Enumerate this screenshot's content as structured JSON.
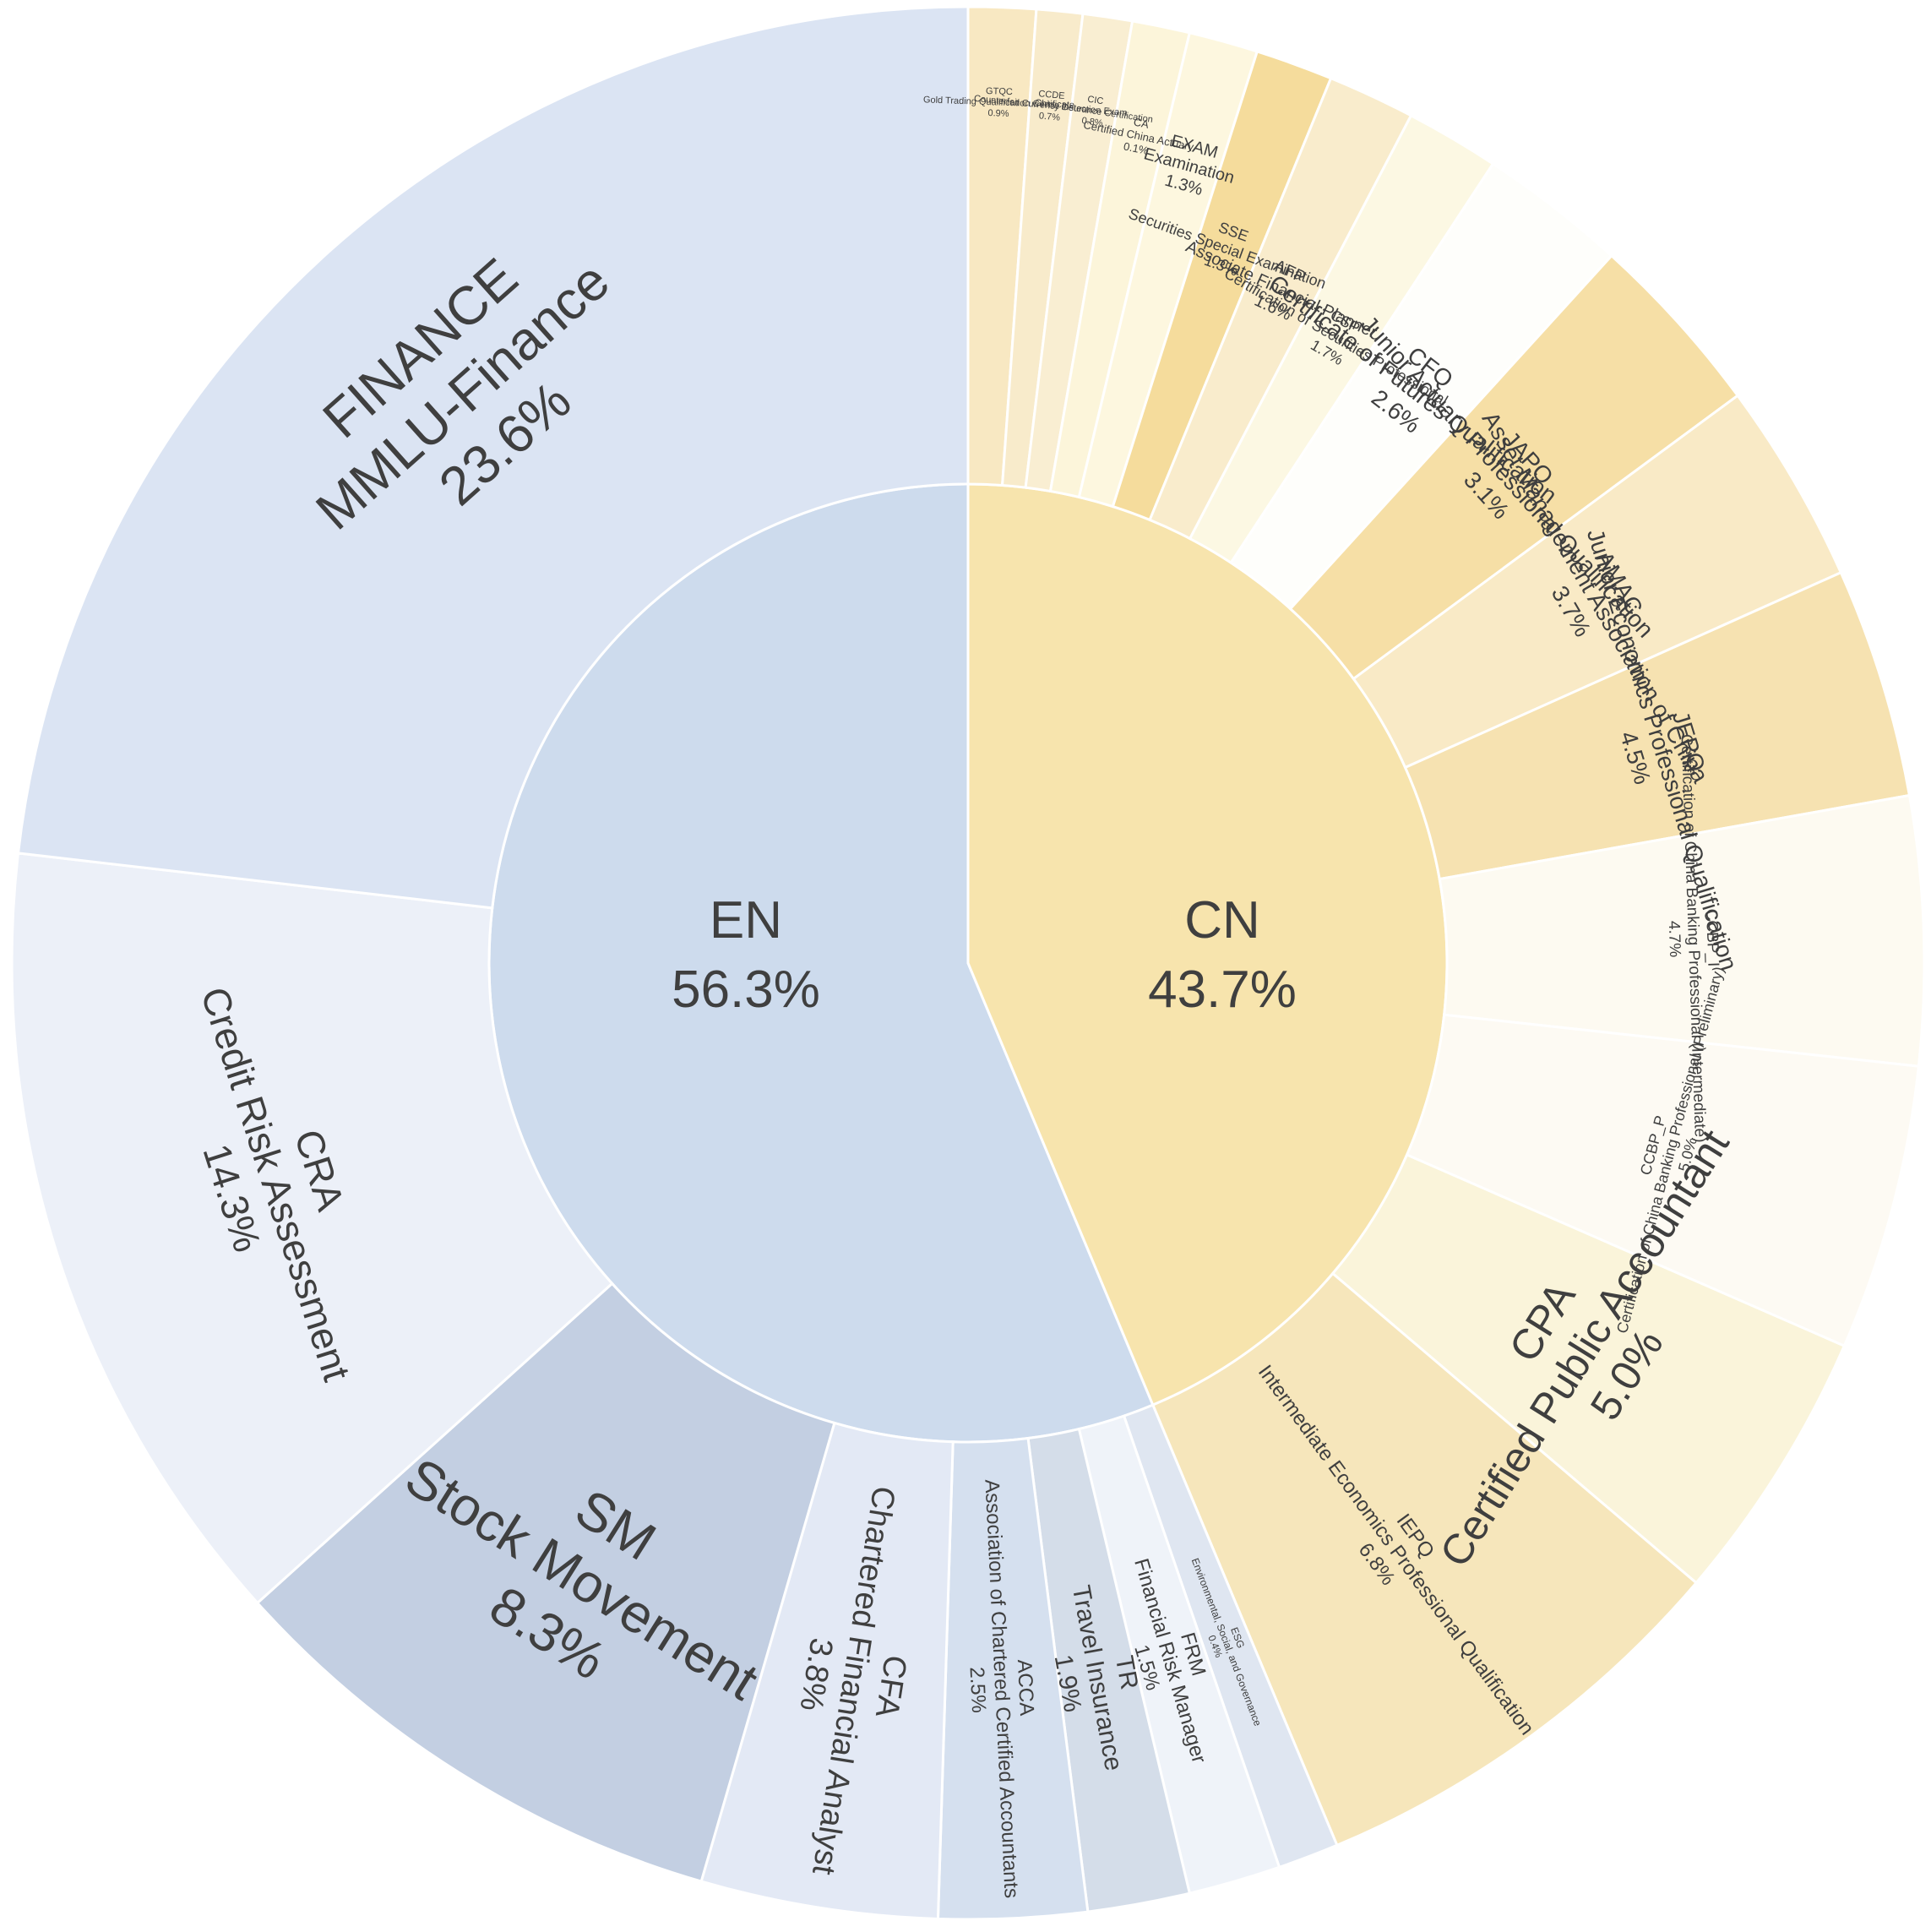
{
  "chart_data": {
    "type": "sunburst",
    "title": "",
    "inner": [
      {
        "name": "EN",
        "percent": "56.3%",
        "value": 56.3,
        "color": "#cddbed"
      },
      {
        "name": "CN",
        "percent": "43.7%",
        "value": 43.7,
        "color": "#f7e4ad"
      }
    ],
    "outer": [
      {
        "code": "CA",
        "name": "Certified China Actuary",
        "percent": "0.1%",
        "value": 0.1,
        "parent": "CN",
        "color": "#fcf5da"
      },
      {
        "code": "EXAM",
        "name": "Examination",
        "percent": "1.3%",
        "value": 1.3,
        "parent": "CN",
        "color": "#fdf7df"
      },
      {
        "code": "SSE",
        "name": "Securities Special Examination",
        "percent": "1.3%",
        "value": 1.3,
        "parent": "CN",
        "color": "#f5dc9c"
      },
      {
        "code": "AFP",
        "name": "Associate Financial Planner",
        "percent": "1.6%",
        "value": 1.6,
        "parent": "CN",
        "color": "#f9eccc"
      },
      {
        "code": "CSP",
        "name": "Certification of Securities Professional",
        "percent": "1.7%",
        "value": 1.7,
        "parent": "CN",
        "color": "#fcf8e3"
      },
      {
        "code": "CFQ",
        "name": "Certificate of Futures Qualification",
        "percent": "2.6%",
        "value": 2.6,
        "parent": "CN",
        "color": "#fefefb"
      },
      {
        "code": "JAPQ",
        "name": "Junior Actuary Professional Qualification",
        "percent": "3.1%",
        "value": 3.1,
        "parent": "CN",
        "color": "#f6dfa6"
      },
      {
        "code": "AMAC",
        "name": "Asset Management Association of China",
        "percent": "3.7%",
        "value": 3.7,
        "parent": "CN",
        "color": "#f9eac6"
      },
      {
        "code": "JEPQ",
        "name": "Junior Economics Professional Qualification",
        "percent": "4.5%",
        "value": 4.5,
        "parent": "CN",
        "color": "#f6e2b1"
      },
      {
        "code": "CCBP_I",
        "name": "Certification of China Banking Professional (Intermediate)",
        "percent": "4.7%",
        "value": 4.7,
        "parent": "CN",
        "color": "#fdfaf1"
      },
      {
        "code": "CCBP_P",
        "name": "Certification of China Banking Professional (Preliminary)",
        "percent": "5.0%",
        "value": 5.0,
        "parent": "CN",
        "color": "#fdfaf3"
      },
      {
        "code": "CPA",
        "name": "Certified Public Accountant",
        "percent": "5.0%",
        "value": 5.0,
        "parent": "CN",
        "color": "#faf4da"
      },
      {
        "code": "IEPQ",
        "name": "Intermediate Economics Professional Qualification",
        "percent": "6.8%",
        "value": 6.8,
        "parent": "CN",
        "color": "#f6e6bb"
      },
      {
        "code": "ESG",
        "name": "Environmental, Social, and Governance",
        "percent": "0.4%",
        "value": 0.4,
        "parent": "EN",
        "color": "#dfe6f1"
      },
      {
        "code": "FRM",
        "name": "Financial Risk Manager",
        "percent": "1.5%",
        "value": 1.5,
        "parent": "EN",
        "color": "#eff3f9"
      },
      {
        "code": "TR",
        "name": "Travel Insurance",
        "percent": "1.9%",
        "value": 1.9,
        "parent": "EN",
        "color": "#d4dde9"
      },
      {
        "code": "ACCA",
        "name": "Association of Chartered Certified Accountants",
        "percent": "2.5%",
        "value": 2.5,
        "parent": "EN",
        "color": "#d5e0ef"
      },
      {
        "code": "CFA",
        "name": "Chartered Financial Analyst",
        "percent": "3.8%",
        "value": 3.8,
        "parent": "EN",
        "color": "#e3e9f5"
      },
      {
        "code": "SM",
        "name": "Stock Movement",
        "percent": "8.3%",
        "value": 8.3,
        "parent": "EN",
        "color": "#c3cfe2"
      },
      {
        "code": "CRA",
        "name": "Credit Risk Assessment",
        "percent": "14.3%",
        "value": 14.3,
        "parent": "EN",
        "color": "#ecf0f8"
      },
      {
        "code": "FINANCE",
        "name": "MMLU-Finance",
        "percent": "23.6%",
        "value": 23.6,
        "parent": "EN",
        "color": "#dbe4f3"
      },
      {
        "code": "GTQC",
        "name": "Gold Trading Qualification Certificate",
        "percent": "0.9%",
        "value": 0.9,
        "parent": "CN",
        "color": "#f8e8c2"
      },
      {
        "code": "CCDE",
        "name": "Counterfeit Currency Detection Exam",
        "percent": "0.7%",
        "value": 0.7,
        "parent": "CN",
        "color": "#f8ebcb"
      },
      {
        "code": "CIC",
        "name": "China Insurance Certification",
        "percent": "0.8%",
        "value": 0.8,
        "parent": "CN",
        "color": "#f9eed2"
      }
    ]
  }
}
